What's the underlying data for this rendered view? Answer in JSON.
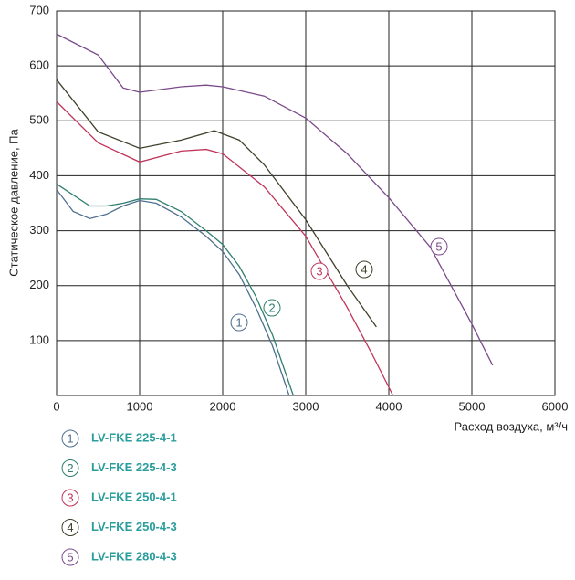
{
  "chart_data": {
    "type": "line",
    "y_label": "Статическое давление, Па",
    "x_label": "Расход воздуха, м³/ч",
    "xlim": [
      0,
      6000
    ],
    "xticks": [
      0,
      1000,
      2000,
      3000,
      4000,
      5000,
      6000
    ],
    "ylim": [
      0,
      700
    ],
    "yticks": [
      100,
      200,
      300,
      400,
      500,
      600,
      700
    ],
    "grid": true,
    "series": [
      {
        "name": "LV-FKE 225-4-1",
        "label": "1",
        "color": "#4f6f8f",
        "x": [
          0,
          200,
          400,
          600,
          800,
          1000,
          1200,
          1500,
          1800,
          2000,
          2200,
          2400,
          2600,
          2800
        ],
        "values": [
          375,
          335,
          322,
          330,
          345,
          355,
          350,
          325,
          290,
          262,
          220,
          160,
          90,
          0
        ]
      },
      {
        "name": "LV-FKE 225-4-3",
        "label": "2",
        "color": "#2f7f6f",
        "x": [
          0,
          200,
          400,
          600,
          800,
          1000,
          1200,
          1500,
          1800,
          2000,
          2200,
          2400,
          2600,
          2850
        ],
        "values": [
          385,
          365,
          345,
          345,
          350,
          358,
          357,
          335,
          300,
          275,
          235,
          180,
          110,
          0
        ]
      },
      {
        "name": "LV-FKE 250-4-1",
        "label": "3",
        "color": "#c0345a",
        "x": [
          0,
          500,
          1000,
          1500,
          1800,
          2000,
          2500,
          3000,
          3500,
          3800,
          4050
        ],
        "values": [
          535,
          460,
          425,
          445,
          448,
          440,
          380,
          290,
          160,
          75,
          0
        ]
      },
      {
        "name": "LV-FKE 250-4-3",
        "label": "4",
        "color": "#3f3f2a",
        "x": [
          0,
          500,
          1000,
          1500,
          1900,
          2200,
          2500,
          3000,
          3500,
          3850
        ],
        "values": [
          575,
          480,
          450,
          465,
          482,
          465,
          420,
          320,
          200,
          125
        ]
      },
      {
        "name": "LV-FKE 280-4-3",
        "label": "5",
        "color": "#7a4a8a",
        "x": [
          0,
          500,
          800,
          1000,
          1500,
          1800,
          2000,
          2500,
          3000,
          3500,
          4000,
          4500,
          5000,
          5250
        ],
        "values": [
          658,
          620,
          560,
          552,
          562,
          565,
          562,
          545,
          505,
          440,
          360,
          270,
          130,
          55
        ]
      }
    ]
  }
}
